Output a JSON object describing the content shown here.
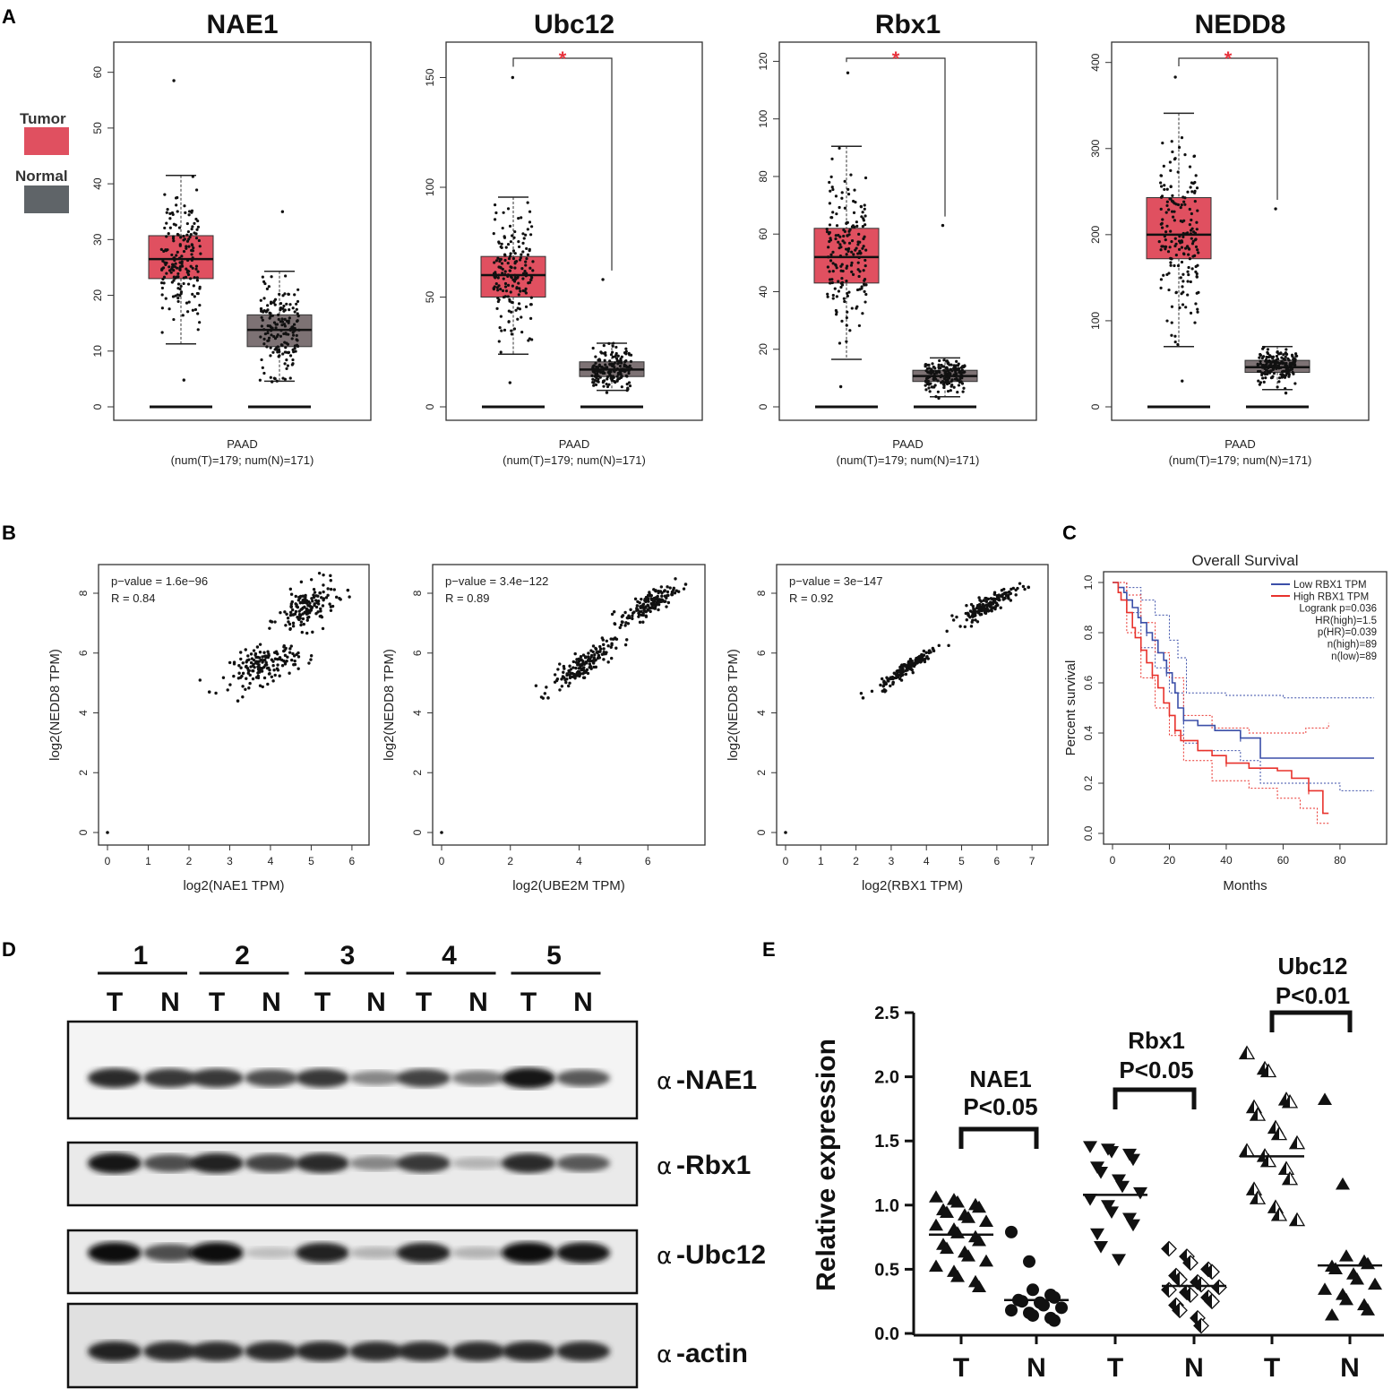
{
  "panel_labels": {
    "a": "A",
    "b": "B",
    "c": "C",
    "d": "D",
    "e": "E"
  },
  "legend_a": {
    "tumor_label": "Tumor",
    "normal_label": "Normal",
    "tumor_color": "#e05060",
    "normal_color": "#5f6468"
  },
  "colors": {
    "tumor": "#e05060",
    "normal": "#7d7274",
    "sig": "#e8323c",
    "low": "#3b4fa8",
    "high": "#e8322c"
  },
  "chart_data": [
    {
      "panel": "A",
      "type": "box",
      "title": "NAE1",
      "ylim": [
        0,
        63
      ],
      "yticks": [
        0,
        10,
        20,
        30,
        40,
        50,
        60
      ],
      "xlabel": "PAAD",
      "xlabel2": "(num(T)=179; num(N)=171)",
      "significance": "",
      "tumor": {
        "q1": 23,
        "median": 26.5,
        "q3": 30.7,
        "lower": 11.3,
        "upper": 41.5,
        "min": 4.8,
        "max": 58.5,
        "n": 179
      },
      "normal": {
        "q1": 10.8,
        "median": 13.8,
        "q3": 16.5,
        "lower": 4.6,
        "upper": 24.3,
        "min": 4.5,
        "max": 35,
        "n": 171
      }
    },
    {
      "panel": "A",
      "type": "box",
      "title": "Ubc12",
      "ylim": [
        0,
        160
      ],
      "yticks": [
        0,
        50,
        100,
        150
      ],
      "xlabel": "PAAD",
      "xlabel2": "(num(T)=179; num(N)=171)",
      "significance": "*",
      "tumor": {
        "q1": 50,
        "median": 60,
        "q3": 68.5,
        "lower": 24,
        "upper": 95.5,
        "min": 11,
        "max": 150,
        "n": 179
      },
      "normal": {
        "q1": 13.8,
        "median": 17,
        "q3": 20.5,
        "lower": 7.5,
        "upper": 29,
        "min": 6.5,
        "max": 58,
        "n": 171
      }
    },
    {
      "panel": "A",
      "type": "box",
      "title": "Rbx1",
      "ylim": [
        0,
        122
      ],
      "yticks": [
        0,
        20,
        40,
        60,
        80,
        100,
        120
      ],
      "xlabel": "PAAD",
      "xlabel2": "(num(T)=179; num(N)=171)",
      "significance": "*",
      "tumor": {
        "q1": 43,
        "median": 52,
        "q3": 62,
        "lower": 16.5,
        "upper": 90.5,
        "min": 7,
        "max": 116,
        "n": 179
      },
      "normal": {
        "q1": 8.8,
        "median": 10.7,
        "q3": 12.7,
        "lower": 3.5,
        "upper": 17,
        "min": 3,
        "max": 63,
        "n": 171
      }
    },
    {
      "panel": "A",
      "type": "box",
      "title": "NEDD8",
      "ylim": [
        0,
        408
      ],
      "yticks": [
        0,
        100,
        200,
        300,
        400
      ],
      "xlabel": "PAAD",
      "xlabel2": "(num(T)=179; num(N)=171)",
      "significance": "*",
      "tumor": {
        "q1": 172,
        "median": 200,
        "q3": 243,
        "lower": 70,
        "upper": 341,
        "min": 30,
        "max": 383,
        "n": 179
      },
      "normal": {
        "q1": 40,
        "median": 46,
        "q3": 54,
        "lower": 20,
        "upper": 70,
        "min": 16,
        "max": 230,
        "n": 171
      }
    },
    {
      "panel": "B",
      "type": "scatter",
      "title": "",
      "xlabel": "log2(NAE1 TPM)",
      "ylabel": "log2(NEDD8 TPM)",
      "xlim": [
        0,
        6.2
      ],
      "ylim": [
        0,
        8.7
      ],
      "xticks": [
        0,
        1,
        2,
        3,
        4,
        5,
        6
      ],
      "yticks": [
        0,
        2,
        4,
        6,
        8
      ],
      "annot_p": "p−value = 1.6e−96",
      "annot_r": "R = 0.84",
      "clusters": [
        {
          "cx": 3.85,
          "cy": 5.6,
          "sx": 0.42,
          "sy": 0.3,
          "n": 160,
          "slope": 0.35
        },
        {
          "cx": 4.9,
          "cy": 7.5,
          "sx": 0.35,
          "sy": 0.35,
          "n": 150,
          "slope": 0.5
        }
      ],
      "outliers": [
        [
          0,
          0
        ],
        [
          5.9,
          8.1
        ],
        [
          2.5,
          4.7
        ],
        [
          3.2,
          4.4
        ]
      ]
    },
    {
      "panel": "B",
      "type": "scatter",
      "title": "",
      "xlabel": "log2(UBE2M TPM)",
      "ylabel": "log2(NEDD8 TPM)",
      "xlim": [
        0,
        7.4
      ],
      "ylim": [
        0,
        8.7
      ],
      "xticks": [
        0,
        2,
        4,
        6
      ],
      "yticks": [
        0,
        2,
        4,
        6,
        8
      ],
      "annot_p": "p−value = 3.4e−122",
      "annot_r": "R = 0.89",
      "clusters": [
        {
          "cx": 4.1,
          "cy": 5.6,
          "sx": 0.45,
          "sy": 0.2,
          "n": 160,
          "slope": 0.7
        },
        {
          "cx": 6.0,
          "cy": 7.6,
          "sx": 0.4,
          "sy": 0.2,
          "n": 150,
          "slope": 0.6
        }
      ],
      "outliers": [
        [
          0,
          0
        ],
        [
          7.1,
          8.3
        ],
        [
          3.1,
          4.5
        ]
      ]
    },
    {
      "panel": "B",
      "type": "scatter",
      "title": "",
      "xlabel": "log2(RBX1 TPM)",
      "ylabel": "log2(NEDD8 TPM)",
      "xlim": [
        0,
        7.2
      ],
      "ylim": [
        0,
        8.7
      ],
      "xticks": [
        0,
        1,
        2,
        3,
        4,
        5,
        6,
        7
      ],
      "yticks": [
        0,
        2,
        4,
        6,
        8
      ],
      "annot_p": "p−value = 3e−147",
      "annot_r": "R = 0.92",
      "clusters": [
        {
          "cx": 3.5,
          "cy": 5.55,
          "sx": 0.4,
          "sy": 0.12,
          "n": 160,
          "slope": 0.85
        },
        {
          "cx": 5.7,
          "cy": 7.6,
          "sx": 0.4,
          "sy": 0.15,
          "n": 150,
          "slope": 0.6
        }
      ],
      "outliers": [
        [
          0,
          0
        ],
        [
          2.2,
          4.5
        ],
        [
          6.9,
          8.2
        ]
      ]
    },
    {
      "panel": "C",
      "type": "line",
      "title": "Overall Survival",
      "xlabel": "Months",
      "ylabel": "Percent survival",
      "xlim": [
        0,
        92
      ],
      "ylim": [
        0,
        1.02
      ],
      "xticks": [
        0,
        20,
        40,
        60,
        80
      ],
      "yticks": [
        0.0,
        0.2,
        0.4,
        0.6,
        0.8,
        1.0
      ],
      "legend": [
        "Low RBX1 TPM",
        "High RBX1 TPM",
        "Logrank p=0.036",
        "HR(high)=1.5",
        "p(HR)=0.039",
        "n(high)=89",
        "n(low)=89"
      ],
      "series": [
        {
          "name": "Low RBX1 TPM",
          "x": [
            0,
            2,
            4,
            5,
            7,
            9,
            10,
            12,
            14,
            16,
            18,
            19,
            21,
            22,
            23,
            25,
            30,
            36,
            45,
            52,
            92
          ],
          "y": [
            1.0,
            0.98,
            0.96,
            0.93,
            0.9,
            0.86,
            0.84,
            0.8,
            0.77,
            0.72,
            0.69,
            0.64,
            0.6,
            0.56,
            0.5,
            0.45,
            0.43,
            0.41,
            0.38,
            0.3,
            0.3
          ]
        },
        {
          "name": "High RBX1 TPM",
          "x": [
            0,
            2,
            3,
            5,
            7,
            8,
            10,
            12,
            14,
            16,
            18,
            20,
            22,
            24,
            30,
            35,
            40,
            48,
            58,
            63,
            69,
            74,
            76
          ],
          "y": [
            1.0,
            0.96,
            0.93,
            0.88,
            0.82,
            0.78,
            0.73,
            0.68,
            0.63,
            0.58,
            0.52,
            0.47,
            0.41,
            0.37,
            0.33,
            0.31,
            0.28,
            0.26,
            0.25,
            0.22,
            0.17,
            0.08,
            0.08
          ]
        }
      ],
      "ci": [
        {
          "name": "Low upper",
          "x": [
            0,
            5,
            10,
            15,
            20,
            23,
            26,
            40,
            60,
            92
          ],
          "y": [
            1.0,
            0.98,
            0.93,
            0.87,
            0.77,
            0.7,
            0.56,
            0.55,
            0.54,
            0.54
          ]
        },
        {
          "name": "Low lower",
          "x": [
            0,
            5,
            10,
            15,
            20,
            25,
            30,
            45,
            52,
            80,
            92
          ],
          "y": [
            1.0,
            0.88,
            0.74,
            0.66,
            0.56,
            0.36,
            0.33,
            0.29,
            0.2,
            0.17,
            0.17
          ]
        },
        {
          "name": "High upper",
          "x": [
            0,
            5,
            10,
            15,
            20,
            25,
            35,
            48,
            60,
            68,
            76
          ],
          "y": [
            1.0,
            0.95,
            0.84,
            0.72,
            0.62,
            0.47,
            0.42,
            0.4,
            0.4,
            0.42,
            0.44
          ]
        },
        {
          "name": "High lower",
          "x": [
            0,
            5,
            10,
            15,
            20,
            25,
            35,
            48,
            58,
            66,
            72,
            76
          ],
          "y": [
            1.0,
            0.8,
            0.62,
            0.5,
            0.39,
            0.29,
            0.21,
            0.18,
            0.14,
            0.1,
            0.04,
            0.04
          ]
        }
      ]
    },
    {
      "panel": "E",
      "type": "scatter",
      "title": "",
      "ylabel": "Relative expression",
      "ylim": [
        0,
        2.5
      ],
      "yticks": [
        "0.0",
        "0.5",
        "1.0",
        "1.5",
        "2.0",
        "2.5"
      ],
      "categories": [
        "T",
        "N",
        "T",
        "N",
        "T",
        "N"
      ],
      "groups": [
        {
          "label": "T",
          "marker": "triangle",
          "mean": 0.77,
          "values": [
            1.06,
            1.04,
            1.02,
            1.0,
            0.98,
            0.96,
            0.94,
            0.92,
            0.9,
            0.87,
            0.84,
            0.81,
            0.78,
            0.75,
            0.72,
            0.69,
            0.66,
            0.63,
            0.6,
            0.56,
            0.52,
            0.48,
            0.44,
            0.4,
            0.36
          ]
        },
        {
          "label": "N",
          "marker": "circle",
          "mean": 0.26,
          "values": [
            0.79,
            0.56,
            0.34,
            0.3,
            0.28,
            0.26,
            0.25,
            0.24,
            0.22,
            0.2,
            0.18,
            0.16,
            0.14,
            0.12,
            0.1
          ]
        },
        {
          "label": "T",
          "marker": "inverted-triangle",
          "mean": 1.08,
          "values": [
            1.46,
            1.44,
            1.42,
            1.4,
            1.36,
            1.3,
            1.26,
            1.2,
            1.15,
            1.1,
            1.05,
            1.0,
            0.95,
            0.9,
            0.85,
            0.78,
            0.68,
            0.58
          ]
        },
        {
          "label": "N",
          "marker": "half-diamond",
          "mean": 0.37,
          "values": [
            0.66,
            0.6,
            0.55,
            0.5,
            0.48,
            0.45,
            0.42,
            0.4,
            0.38,
            0.36,
            0.34,
            0.32,
            0.3,
            0.28,
            0.25,
            0.22,
            0.18,
            0.12,
            0.06
          ]
        },
        {
          "label": "T",
          "marker": "half-triangle",
          "mean": 1.38,
          "values": [
            2.18,
            2.06,
            2.04,
            1.82,
            1.8,
            1.76,
            1.7,
            1.6,
            1.55,
            1.48,
            1.42,
            1.38,
            1.34,
            1.28,
            1.2,
            1.12,
            1.05,
            0.98,
            0.92,
            0.88
          ]
        },
        {
          "label": "N",
          "marker": "triangle",
          "mean": 0.53,
          "values": [
            1.82,
            1.16,
            0.6,
            0.56,
            0.54,
            0.52,
            0.5,
            0.46,
            0.42,
            0.38,
            0.34,
            0.3,
            0.26,
            0.22,
            0.18,
            0.14
          ]
        }
      ],
      "comparisons": [
        {
          "gene": "NAE1",
          "p": "P<0.05"
        },
        {
          "gene": "Rbx1",
          "p": "P<0.05"
        },
        {
          "gene": "Ubc12",
          "p": "P<0.01"
        }
      ]
    }
  ],
  "western": {
    "patients": [
      "1",
      "2",
      "3",
      "4",
      "5"
    ],
    "lanes": [
      "T",
      "N",
      "T",
      "N",
      "T",
      "N",
      "T",
      "N",
      "T",
      "N"
    ],
    "alpha": "α",
    "blots": [
      {
        "label": "-NAE1",
        "intensity": [
          0.85,
          0.8,
          0.8,
          0.7,
          0.8,
          0.45,
          0.75,
          0.5,
          0.95,
          0.65
        ]
      },
      {
        "label": "-Rbx1",
        "intensity": [
          0.95,
          0.7,
          0.9,
          0.75,
          0.85,
          0.45,
          0.8,
          0.25,
          0.85,
          0.65
        ]
      },
      {
        "label": "-Ubc12",
        "intensity": [
          1.0,
          0.7,
          1.0,
          0.2,
          0.9,
          0.25,
          0.9,
          0.25,
          1.0,
          0.95
        ]
      },
      {
        "label": "-actin",
        "intensity": [
          0.9,
          0.85,
          0.85,
          0.85,
          0.88,
          0.85,
          0.85,
          0.85,
          0.88,
          0.85
        ]
      }
    ]
  }
}
